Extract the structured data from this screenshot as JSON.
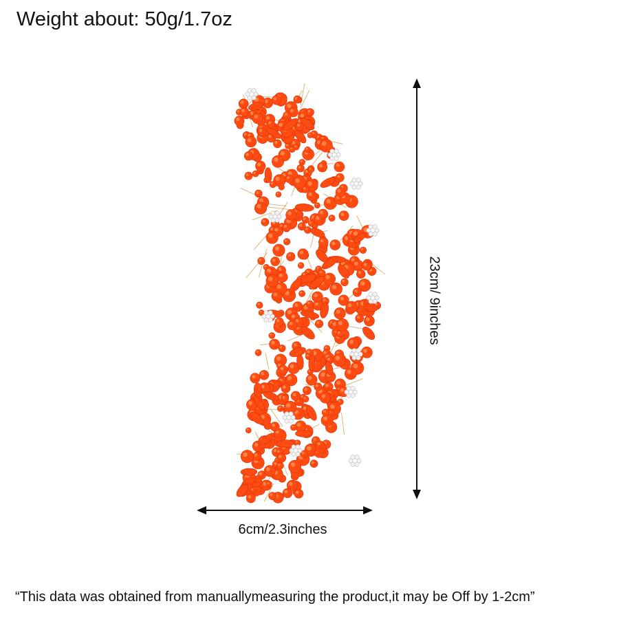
{
  "header": {
    "weight_text": "Weight about: 50g/1.7oz"
  },
  "product": {
    "image_name": "orange-crystal-hair-vine",
    "crystal_color": "#ff4a12",
    "crystal_highlight": "#ff9a55",
    "rhinestone_color": "#f4f2f2",
    "wire_color": "#d2a65a"
  },
  "dimensions": {
    "height_text": "23cm/ 9inches",
    "width_text": "6cm/2.3inches"
  },
  "footer": {
    "note_text": "“This data was obtained from manuallymeasuring the product,it may be Off by 1-2cm”"
  },
  "colors": {
    "text": "#111111",
    "arrow": "#111111"
  }
}
